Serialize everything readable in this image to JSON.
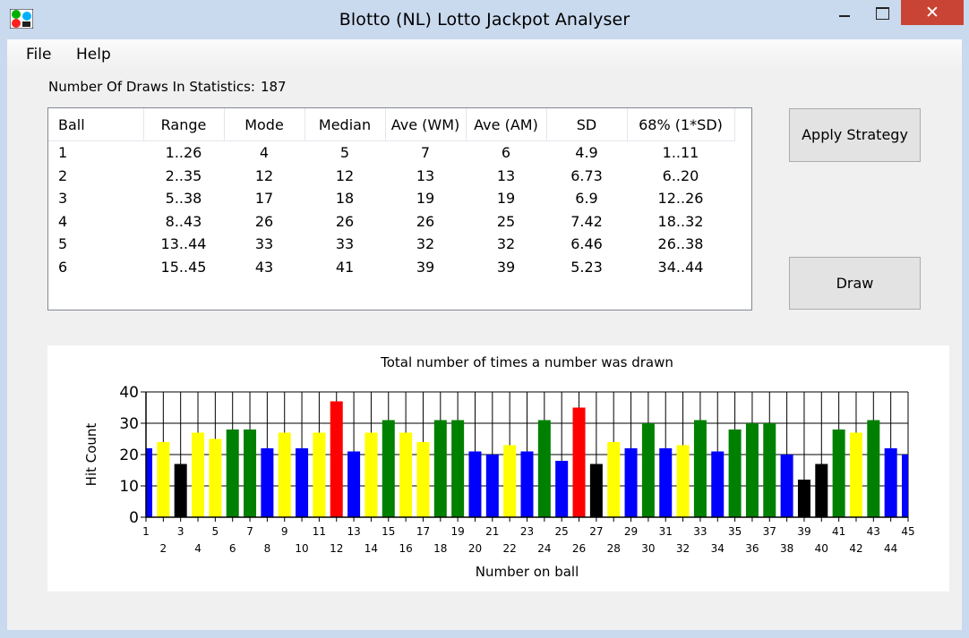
{
  "window": {
    "title": "Blotto (NL) Lotto Jackpot Analyser",
    "close_glyph": "✕"
  },
  "menu": {
    "file": "File",
    "help": "Help"
  },
  "stats": {
    "label": "Number Of Draws In Statistics:",
    "value": "187"
  },
  "table": {
    "columns": [
      "Ball",
      "Range",
      "Mode",
      "Median",
      "Ave (WM)",
      "Ave (AM)",
      "SD",
      "68% (1*SD)"
    ],
    "rows": [
      [
        "1",
        "1..26",
        "4",
        "5",
        "7",
        "6",
        "4.9",
        "1..11"
      ],
      [
        "2",
        "2..35",
        "12",
        "12",
        "13",
        "13",
        "6.73",
        "6..20"
      ],
      [
        "3",
        "5..38",
        "17",
        "18",
        "19",
        "19",
        "6.9",
        "12..26"
      ],
      [
        "4",
        "8..43",
        "26",
        "26",
        "26",
        "25",
        "7.42",
        "18..32"
      ],
      [
        "5",
        "13..44",
        "33",
        "33",
        "32",
        "32",
        "6.46",
        "26..38"
      ],
      [
        "6",
        "15..45",
        "43",
        "41",
        "39",
        "39",
        "5.23",
        "34..44"
      ]
    ]
  },
  "buttons": {
    "apply": "Apply Strategy",
    "draw": "Draw"
  },
  "colors": {
    "blue": "#0000ff",
    "yellow": "#ffff00",
    "black": "#000000",
    "green": "#008000",
    "red": "#ff0000"
  },
  "chart_data": {
    "type": "bar",
    "title": "Total number of times a number was drawn",
    "xlabel": "Number on ball",
    "ylabel": "Hit Count",
    "ylim": [
      0,
      40
    ],
    "yticks": [
      0,
      10,
      20,
      30,
      40
    ],
    "grid": true,
    "categories": [
      "1",
      "2",
      "3",
      "4",
      "5",
      "6",
      "7",
      "8",
      "9",
      "10",
      "11",
      "12",
      "13",
      "14",
      "15",
      "16",
      "17",
      "18",
      "19",
      "20",
      "21",
      "22",
      "23",
      "24",
      "25",
      "26",
      "27",
      "28",
      "29",
      "30",
      "31",
      "32",
      "33",
      "34",
      "35",
      "36",
      "37",
      "38",
      "39",
      "40",
      "41",
      "42",
      "43",
      "44",
      "45"
    ],
    "values": [
      22,
      24,
      17,
      27,
      25,
      28,
      28,
      22,
      27,
      22,
      27,
      37,
      21,
      27,
      31,
      27,
      24,
      31,
      31,
      21,
      20,
      23,
      21,
      31,
      18,
      35,
      17,
      24,
      22,
      30,
      22,
      23,
      31,
      21,
      28,
      30,
      30,
      20,
      12,
      17,
      28,
      27,
      31,
      22,
      20
    ],
    "bar_colors": [
      "blue",
      "yellow",
      "black",
      "yellow",
      "yellow",
      "green",
      "green",
      "blue",
      "yellow",
      "blue",
      "yellow",
      "red",
      "blue",
      "yellow",
      "green",
      "yellow",
      "yellow",
      "green",
      "green",
      "blue",
      "blue",
      "yellow",
      "blue",
      "green",
      "blue",
      "red",
      "black",
      "yellow",
      "blue",
      "green",
      "blue",
      "yellow",
      "green",
      "blue",
      "green",
      "green",
      "green",
      "blue",
      "black",
      "black",
      "green",
      "yellow",
      "green",
      "blue",
      "blue"
    ]
  }
}
